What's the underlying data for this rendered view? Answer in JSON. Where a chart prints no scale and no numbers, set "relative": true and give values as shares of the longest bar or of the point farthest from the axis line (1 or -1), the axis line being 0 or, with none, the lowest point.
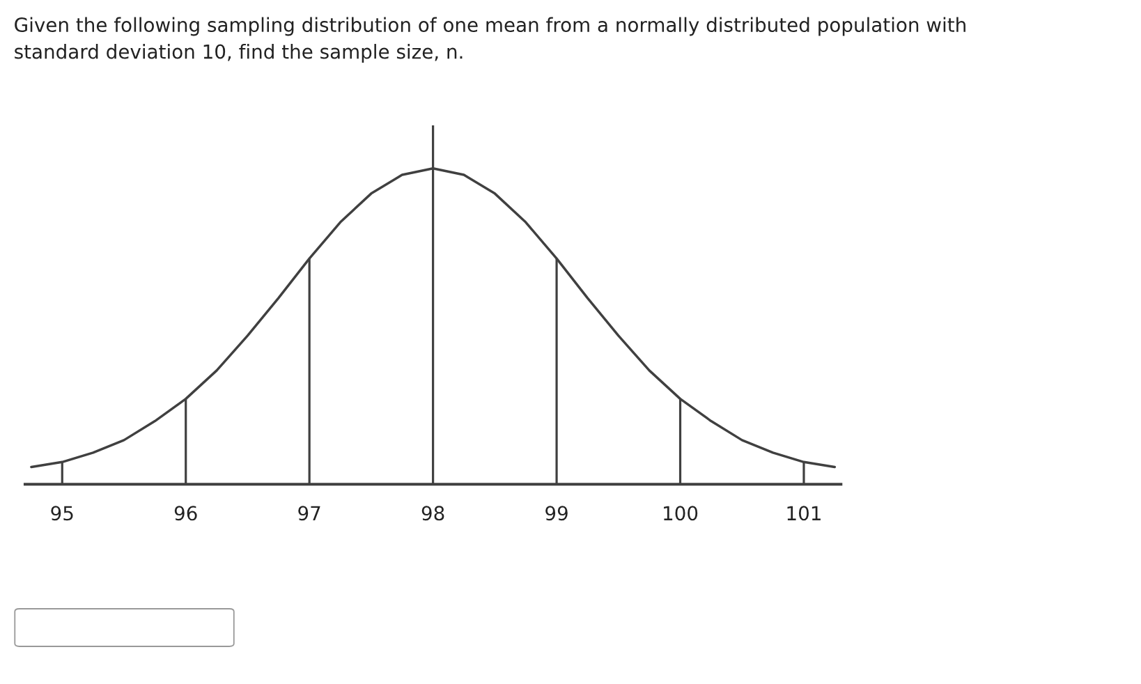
{
  "chart_data": {
    "type": "line",
    "relative": true,
    "title": "Given the following sampling distribution of one mean from a normally distributed population with\nstandard deviation 10, find the sample size, n.",
    "x": [
      94.75,
      95,
      95.25,
      95.5,
      95.75,
      96,
      96.25,
      96.5,
      96.75,
      97,
      97.25,
      97.5,
      97.75,
      98,
      98.25,
      98.5,
      98.75,
      99,
      99.25,
      99.5,
      99.75,
      100,
      100.25,
      100.5,
      100.75,
      101,
      101.25
    ],
    "series": [
      {
        "color": "#404040",
        "values": [
          0.048,
          0.062,
          0.088,
          0.123,
          0.176,
          0.238,
          0.317,
          0.414,
          0.519,
          0.629,
          0.73,
          0.81,
          0.862,
          0.88,
          0.862,
          0.81,
          0.73,
          0.629,
          0.519,
          0.414,
          0.317,
          0.238,
          0.176,
          0.123,
          0.088,
          0.062,
          0.048
        ]
      },
      {
        "type": "bar",
        "color": "#404040",
        "x": [
          95,
          96,
          97,
          98,
          99,
          100,
          101
        ],
        "values": [
          0.062,
          0.238,
          0.629,
          1,
          0.629,
          0.238,
          0.062
        ]
      }
    ],
    "xlim": [
      94.7,
      101.3
    ],
    "xticks": [
      95,
      96,
      97,
      98,
      99,
      100,
      101
    ],
    "grid": false,
    "legend": false
  }
}
